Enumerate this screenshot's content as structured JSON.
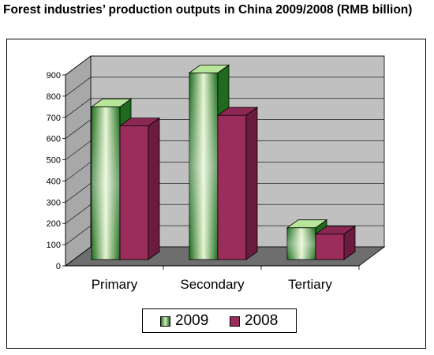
{
  "chart_data": {
    "type": "bar",
    "title": "Forest industries’ production outputs in China 2009/2008 (RMB billion)",
    "categories": [
      "Primary",
      "Secondary",
      "Tertiary"
    ],
    "series": [
      {
        "name": "2009",
        "values": [
          720,
          880,
          150
        ],
        "color": "#2e8b2e"
      },
      {
        "name": "2008",
        "values": [
          630,
          680,
          120
        ],
        "color": "#9b2d5c"
      }
    ],
    "ylim": [
      0,
      900
    ],
    "yticks": [
      0,
      100,
      200,
      300,
      400,
      500,
      600,
      700,
      800,
      900
    ],
    "grid": true,
    "legend_position": "bottom"
  }
}
